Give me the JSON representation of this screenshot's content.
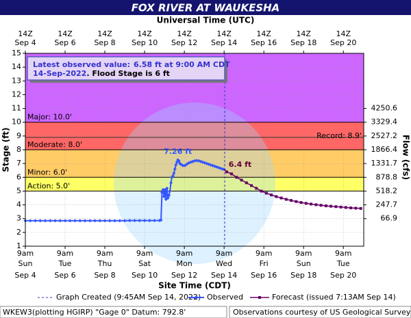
{
  "chart_data": {
    "type": "hydrograph",
    "title": "FOX RIVER AT WAUKESHA",
    "top_axis_title": "Universal Time (UTC)",
    "x_axis_title": "Site Time (CDT)",
    "y_axis_title": "Stage (ft)",
    "y2_axis_title": "Flow (cfs)",
    "xlim": [
      4.375,
      21.4
    ],
    "ylim": [
      1,
      15
    ],
    "xticks": [
      {
        "value": 4.375,
        "label": "9am"
      },
      {
        "value": 6.375,
        "label": "9am"
      },
      {
        "value": 8.375,
        "label": "9am"
      },
      {
        "value": 10.375,
        "label": "9am"
      },
      {
        "value": 12.375,
        "label": "9am"
      },
      {
        "value": 14.375,
        "label": "9am"
      },
      {
        "value": 16.375,
        "label": "9am"
      },
      {
        "value": 18.375,
        "label": "9am"
      },
      {
        "value": 20.375,
        "label": "9am"
      }
    ],
    "xtick_weekdays": [
      "Sun",
      "Tue",
      "Thu",
      "Sat",
      "Mon",
      "Wed",
      "Fri",
      "Sun",
      "Tue"
    ],
    "xtick_dates": [
      "Sep 4",
      "Sep 6",
      "Sep 8",
      "Sep 10",
      "Sep 12",
      "Sep 14",
      "Sep 16",
      "Sep 18",
      "Sep 20"
    ],
    "utc_labels": [
      "14Z",
      "14Z",
      "14Z",
      "14Z",
      "14Z",
      "14Z",
      "14Z",
      "14Z",
      "14Z"
    ],
    "yticks": [
      1,
      2,
      3,
      4,
      5,
      6,
      7,
      8,
      9,
      10,
      11,
      12,
      13,
      14,
      15
    ],
    "flow_ticks": [
      {
        "stage": 3,
        "flow": 66.9
      },
      {
        "stage": 4,
        "flow": 247.7
      },
      {
        "stage": 5,
        "flow": 518.2
      },
      {
        "stage": 6,
        "flow": 878.8
      },
      {
        "stage": 7,
        "flow": 1331.7
      },
      {
        "stage": 8,
        "flow": 1866.4
      },
      {
        "stage": 9,
        "flow": 2527.2
      },
      {
        "stage": 10,
        "flow": 3329.4
      },
      {
        "stage": 11,
        "flow": 4250.6
      }
    ],
    "grid": true,
    "bands": [
      {
        "name": "Action: 5.0'",
        "from": 5,
        "to": 6,
        "color": "#ffff66"
      },
      {
        "name": "Minor: 6.0'",
        "from": 6,
        "to": 8,
        "color": "#ffcc66"
      },
      {
        "name": "Moderate: 8.0'",
        "from": 8,
        "to": 10,
        "color": "#ff6666"
      },
      {
        "name": "Major: 10.0'",
        "from": 10,
        "to": 15,
        "color": "#cc66ff"
      }
    ],
    "record": {
      "name": "Record: 8.9'",
      "value": 8.9
    },
    "created": {
      "name": "Graph Created (9:45AM Sep 14, 2022)",
      "x": 14.406
    },
    "series": [
      {
        "name": "Observed",
        "color": "#3355ff",
        "x": [
          4.375,
          4.625,
          4.875,
          5.125,
          5.375,
          5.625,
          5.875,
          6.125,
          6.375,
          6.625,
          6.875,
          7.125,
          7.375,
          7.625,
          7.875,
          8.125,
          8.375,
          8.625,
          8.875,
          9.125,
          9.375,
          9.625,
          9.875,
          10.125,
          10.375,
          10.625,
          10.875,
          11.125,
          11.2,
          11.25,
          11.3,
          11.35,
          11.4,
          11.45,
          11.5,
          11.55,
          11.6,
          11.65,
          11.7,
          11.75,
          11.8,
          11.85,
          11.9,
          11.95,
          12.0,
          12.05,
          12.1,
          12.15,
          12.2,
          12.3,
          12.4,
          12.5,
          12.6,
          12.7,
          12.8,
          12.9,
          13.0,
          13.1,
          13.2,
          13.3,
          13.4,
          13.5,
          13.6,
          13.7,
          13.8,
          13.9,
          14.0,
          14.1,
          14.2,
          14.3,
          14.375
        ],
        "values": [
          2.85,
          2.85,
          2.85,
          2.85,
          2.85,
          2.85,
          2.85,
          2.85,
          2.85,
          2.85,
          2.85,
          2.85,
          2.85,
          2.85,
          2.85,
          2.85,
          2.85,
          2.85,
          2.85,
          2.85,
          2.85,
          2.86,
          2.86,
          2.86,
          2.86,
          2.86,
          2.86,
          2.87,
          2.9,
          4.9,
          5.1,
          4.6,
          5.1,
          4.4,
          5.2,
          4.5,
          4.7,
          5.0,
          5.6,
          6.0,
          6.1,
          6.3,
          6.6,
          6.9,
          7.1,
          7.26,
          7.2,
          7.0,
          6.95,
          6.85,
          6.85,
          6.95,
          7.05,
          7.1,
          7.15,
          7.2,
          7.22,
          7.2,
          7.15,
          7.1,
          7.05,
          7.0,
          6.95,
          6.9,
          6.85,
          6.8,
          6.75,
          6.7,
          6.65,
          6.6,
          6.58
        ]
      },
      {
        "name": "Forecast (issued 7:13AM Sep 14)",
        "color": "#660066",
        "x": [
          14.5,
          14.75,
          15.0,
          15.25,
          15.5,
          15.75,
          16.0,
          16.25,
          16.5,
          16.75,
          17.0,
          17.25,
          17.5,
          17.75,
          18.0,
          18.25,
          18.5,
          18.75,
          19.0,
          19.25,
          19.5,
          19.75,
          20.0,
          20.25,
          20.5,
          20.75,
          21.0,
          21.25
        ],
        "values": [
          6.4,
          6.25,
          6.0,
          5.8,
          5.6,
          5.4,
          5.2,
          5.0,
          4.85,
          4.72,
          4.6,
          4.5,
          4.4,
          4.32,
          4.24,
          4.17,
          4.11,
          4.06,
          4.01,
          3.97,
          3.93,
          3.9,
          3.87,
          3.84,
          3.81,
          3.78,
          3.76,
          3.74
        ]
      }
    ],
    "peak_label": "7.26 ft",
    "forecast_label": "6.4 ft",
    "info": {
      "label": "Latest observed value:",
      "value": "6.58 ft at 9:00 AM CDT",
      "date": "14-Sep-2022",
      "flood": ". Flood Stage is 6 ft"
    },
    "footer_left": "WKEW3(plotting HGIRP) \"Gage 0\" Datum: 792.8'",
    "footer_right": "Observations courtesy of US Geological Survey"
  }
}
